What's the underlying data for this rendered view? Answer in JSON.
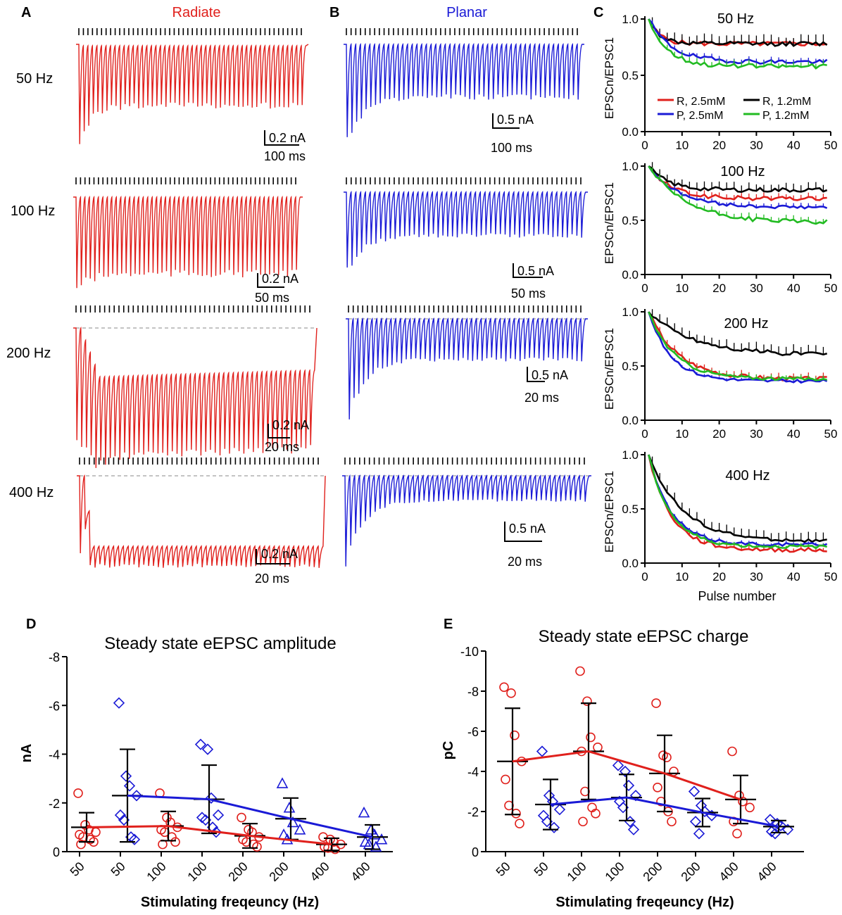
{
  "panel_labels": {
    "A": "A",
    "B": "B",
    "C": "C",
    "D": "D",
    "E": "E"
  },
  "traces": {
    "radiate_title": "Radiate",
    "planar_title": "Planar",
    "colors": {
      "radiate": "#e0201c",
      "planar": "#1a1ad6",
      "ticks": "#000000",
      "baseline": "#b0b0b0"
    },
    "rows": [
      {
        "freq_label": "50 Hz",
        "radiate_scale": {
          "amp": "0.2 nA",
          "time": "100 ms"
        },
        "planar_scale": {
          "amp": "0.5 nA",
          "time": "100 ms"
        }
      },
      {
        "freq_label": "100 Hz",
        "radiate_scale": {
          "amp": "0.2 nA",
          "time": "50 ms"
        },
        "planar_scale": {
          "amp": "0.5 nA",
          "time": "50 ms"
        }
      },
      {
        "freq_label": "200 Hz",
        "radiate_scale": {
          "amp": "0.2 nA",
          "time": "20 ms"
        },
        "planar_scale": {
          "amp": "0.5 nA",
          "time": "20 ms"
        }
      },
      {
        "freq_label": "400 Hz",
        "radiate_scale": {
          "amp": "0.2 nA",
          "time": "20 ms"
        },
        "planar_scale": {
          "amp": "0.5 nA",
          "time": "20 ms"
        }
      }
    ]
  },
  "chart_data": [
    {
      "type": "line",
      "title": "50 Hz",
      "ylabel": "EPSCn/EPSC1",
      "xlabel": "",
      "xlim": [
        0,
        50
      ],
      "ylim": [
        0,
        1.0
      ],
      "xticks": [
        "0",
        "10",
        "20",
        "30",
        "40",
        "50"
      ],
      "yticks": [
        "0.0",
        "0.5",
        "1.0"
      ],
      "legend": [
        "R, 2.5mM",
        "R, 1.2mM",
        "P, 2.5mM",
        "P, 1.2mM"
      ],
      "series": [
        {
          "name": "R, 2.5mM",
          "color": "#e0201c",
          "plateau": 0.78,
          "tau": 3.0,
          "noise": 0.02,
          "err": 0.03
        },
        {
          "name": "R, 1.2mM",
          "color": "#000000",
          "plateau": 0.78,
          "tau": 3.0,
          "noise": 0.02,
          "err": 0.07
        },
        {
          "name": "P, 2.5mM",
          "color": "#1a1ad6",
          "plateau": 0.62,
          "tau": 6.0,
          "noise": 0.02,
          "err": 0.03
        },
        {
          "name": "P, 1.2mM",
          "color": "#22bb22",
          "plateau": 0.58,
          "tau": 5.0,
          "noise": 0.02,
          "err": 0.04
        }
      ]
    },
    {
      "type": "line",
      "title": "100 Hz",
      "ylabel": "EPSCn/EPSC1",
      "xlabel": "",
      "xlim": [
        0,
        50
      ],
      "ylim": [
        0,
        1.0
      ],
      "xticks": [
        "0",
        "10",
        "20",
        "30",
        "40",
        "50"
      ],
      "yticks": [
        "0.0",
        "0.5",
        "1.0"
      ],
      "series": [
        {
          "name": "R, 2.5mM",
          "color": "#e0201c",
          "plateau": 0.7,
          "tau": 6.0,
          "noise": 0.02,
          "err": 0.04
        },
        {
          "name": "R, 1.2mM",
          "color": "#000000",
          "plateau": 0.78,
          "tau": 5.0,
          "noise": 0.02,
          "err": 0.06
        },
        {
          "name": "P, 2.5mM",
          "color": "#1a1ad6",
          "plateau": 0.62,
          "tau": 8.0,
          "noise": 0.015,
          "err": 0.03
        },
        {
          "name": "P, 1.2mM",
          "color": "#22bb22",
          "plateau": 0.48,
          "tau": 10.0,
          "noise": 0.02,
          "err": 0.04
        }
      ]
    },
    {
      "type": "line",
      "title": "200 Hz",
      "ylabel": "EPSCn/EPSC1",
      "xlabel": "",
      "xlim": [
        0,
        50
      ],
      "ylim": [
        0,
        1.0
      ],
      "xticks": [
        "0",
        "10",
        "20",
        "30",
        "40",
        "50"
      ],
      "yticks": [
        "0.0",
        "0.5",
        "1.0"
      ],
      "series": [
        {
          "name": "R, 2.5mM",
          "color": "#e0201c",
          "plateau": 0.38,
          "tau": 8.0,
          "noise": 0.02,
          "err": 0.04
        },
        {
          "name": "R, 1.2mM",
          "color": "#000000",
          "plateau": 0.6,
          "tau": 12.0,
          "noise": 0.02,
          "err": 0.07
        },
        {
          "name": "P, 2.5mM",
          "color": "#1a1ad6",
          "plateau": 0.36,
          "tau": 6.0,
          "noise": 0.015,
          "err": 0.02
        },
        {
          "name": "P, 1.2mM",
          "color": "#22bb22",
          "plateau": 0.38,
          "tau": 7.0,
          "noise": 0.015,
          "err": 0.03
        }
      ]
    },
    {
      "type": "line",
      "title": "400 Hz",
      "ylabel": "EPSCn/EPSC1",
      "xlabel": "Pulse number",
      "xlim": [
        0,
        50
      ],
      "ylim": [
        0,
        1.0
      ],
      "xticks": [
        "0",
        "10",
        "20",
        "30",
        "40",
        "50"
      ],
      "yticks": [
        "0.0",
        "0.5",
        "1.0"
      ],
      "series": [
        {
          "name": "R, 2.5mM",
          "color": "#e0201c",
          "plateau": 0.12,
          "tau": 6.0,
          "noise": 0.02,
          "err": 0.03
        },
        {
          "name": "R, 1.2mM",
          "color": "#000000",
          "plateau": 0.2,
          "tau": 9.0,
          "noise": 0.015,
          "err": 0.07
        },
        {
          "name": "P, 2.5mM",
          "color": "#1a1ad6",
          "plateau": 0.17,
          "tau": 6.0,
          "noise": 0.015,
          "err": 0.02
        },
        {
          "name": "P, 1.2mM",
          "color": "#22bb22",
          "plateau": 0.15,
          "tau": 6.0,
          "noise": 0.015,
          "err": 0.02
        }
      ]
    },
    {
      "type": "scatter",
      "title": "Steady state eEPSC amplitude",
      "xlabel": "Stimulating freqeuncy (Hz)",
      "ylabel": "nA",
      "ylim": [
        0,
        -8
      ],
      "yticks": [
        "0",
        "-2",
        "-4",
        "-6",
        "-8"
      ],
      "categories": [
        "50",
        "50",
        "100",
        "100",
        "200",
        "200",
        "400",
        "400"
      ],
      "groups": [
        {
          "cat": 0,
          "series": "Radiate",
          "mean": -1.0,
          "sd": 0.6,
          "points": [
            -2.4,
            -1.1,
            -0.9,
            -0.8,
            -0.7,
            -0.6,
            -0.5,
            -0.4,
            -0.3
          ]
        },
        {
          "cat": 1,
          "series": "Planar",
          "mean": -2.3,
          "sd": 1.9,
          "points": [
            -6.1,
            -3.1,
            -2.7,
            -2.3,
            -1.5,
            -1.3,
            -0.6,
            -0.5
          ]
        },
        {
          "cat": 2,
          "series": "Radiate",
          "mean": -1.05,
          "sd": 0.6,
          "points": [
            -2.4,
            -1.4,
            -1.2,
            -1.0,
            -0.9,
            -0.8,
            -0.6,
            -0.4,
            -0.3
          ]
        },
        {
          "cat": 3,
          "series": "Planar",
          "mean": -2.15,
          "sd": 1.4,
          "points": [
            -4.4,
            -4.2,
            -2.2,
            -1.5,
            -1.4,
            -1.3,
            -1.0,
            -0.8
          ]
        },
        {
          "cat": 4,
          "series": "Radiate",
          "mean": -0.65,
          "sd": 0.5,
          "points": [
            -1.4,
            -0.9,
            -0.8,
            -0.6,
            -0.5,
            -0.4,
            -0.3,
            -0.2
          ]
        },
        {
          "cat": 5,
          "series": "Planar",
          "mean": -1.35,
          "sd": 0.85,
          "points": [
            -2.8,
            -1.8,
            -1.2,
            -0.9,
            -0.7,
            -0.5
          ]
        },
        {
          "cat": 6,
          "series": "Radiate",
          "mean": -0.3,
          "sd": 0.25,
          "points": [
            -0.6,
            -0.5,
            -0.4,
            -0.3,
            -0.2,
            -0.15,
            -0.1
          ]
        },
        {
          "cat": 7,
          "series": "Planar",
          "mean": -0.6,
          "sd": 0.5,
          "points": [
            -1.6,
            -0.9,
            -0.7,
            -0.5,
            -0.4,
            -0.3,
            -0.2
          ]
        }
      ]
    },
    {
      "type": "scatter",
      "title": "Steady state eEPSC charge",
      "xlabel": "Stimulating freqeuncy (Hz)",
      "ylabel": "pC",
      "ylim": [
        0,
        -10
      ],
      "yticks": [
        "0",
        "-2",
        "-4",
        "-6",
        "-8",
        "-10"
      ],
      "categories": [
        "50",
        "50",
        "100",
        "100",
        "200",
        "200",
        "400",
        "400"
      ],
      "groups": [
        {
          "cat": 0,
          "series": "Radiate",
          "mean": -4.5,
          "sd": 2.65,
          "points": [
            -8.2,
            -7.9,
            -5.8,
            -4.5,
            -3.6,
            -2.3,
            -1.9,
            -1.4
          ]
        },
        {
          "cat": 1,
          "series": "Planar",
          "mean": -2.35,
          "sd": 1.25,
          "points": [
            -5.0,
            -2.8,
            -2.5,
            -2.1,
            -1.8,
            -1.5,
            -1.2
          ]
        },
        {
          "cat": 2,
          "series": "Radiate",
          "mean": -5.0,
          "sd": 2.4,
          "points": [
            -9.0,
            -7.5,
            -5.7,
            -5.2,
            -5.0,
            -3.0,
            -2.2,
            -1.9,
            -1.5
          ]
        },
        {
          "cat": 3,
          "series": "Planar",
          "mean": -2.7,
          "sd": 1.15,
          "points": [
            -4.3,
            -4.0,
            -3.3,
            -2.8,
            -2.5,
            -2.2,
            -1.5,
            -1.1
          ]
        },
        {
          "cat": 4,
          "series": "Radiate",
          "mean": -3.9,
          "sd": 1.9,
          "points": [
            -7.4,
            -4.8,
            -4.7,
            -4.0,
            -3.2,
            -2.5,
            -2.0,
            -1.5
          ]
        },
        {
          "cat": 5,
          "series": "Planar",
          "mean": -1.95,
          "sd": 0.7,
          "points": [
            -3.0,
            -2.3,
            -2.0,
            -1.8,
            -1.5,
            -0.9
          ]
        },
        {
          "cat": 6,
          "series": "Radiate",
          "mean": -2.6,
          "sd": 1.2,
          "points": [
            -5.0,
            -2.8,
            -2.5,
            -2.2,
            -1.5,
            -0.9
          ]
        },
        {
          "cat": 7,
          "series": "Planar",
          "mean": -1.25,
          "sd": 0.3,
          "points": [
            -1.6,
            -1.4,
            -1.3,
            -1.1,
            -1.0,
            -0.9
          ]
        }
      ]
    }
  ]
}
